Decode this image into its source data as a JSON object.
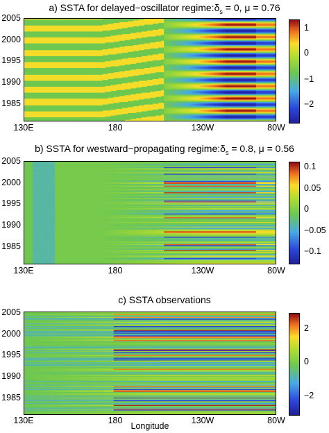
{
  "chart_data": [
    {
      "type": "heatmap",
      "title_prefix": "a) SSTA for delayed−oscillator regime:",
      "title_params": "= 0, μ = 0.76",
      "param_symbol": "δ",
      "param_sub": "s",
      "xlabel": "",
      "x_ticks": [
        "130E",
        "180",
        "130W",
        "80W"
      ],
      "y_ticks": [
        "2005",
        "2000",
        "1995",
        "1990",
        "1985"
      ],
      "ylim": [
        1981,
        2005
      ],
      "colorbar_ticks": [
        "1",
        "0",
        "−1",
        "−2"
      ],
      "colorbar_range": [
        -2.5,
        1.5
      ]
    },
    {
      "type": "heatmap",
      "title_prefix": "b) SSTA for westward−propagating regime:",
      "title_params": "= 0.8, μ = 0.56",
      "param_symbol": "δ",
      "param_sub": "s",
      "xlabel": "",
      "x_ticks": [
        "130E",
        "180",
        "130W",
        "80W"
      ],
      "y_ticks": [
        "2005",
        "2000",
        "1995",
        "1990",
        "1985"
      ],
      "ylim": [
        1981,
        2005
      ],
      "colorbar_ticks": [
        "0.1",
        "0.05",
        "0",
        "−0.05",
        "−0.1"
      ],
      "colorbar_range": [
        -0.12,
        0.11
      ]
    },
    {
      "type": "heatmap",
      "title": "c) SSTA observations",
      "xlabel": "Longitude",
      "x_ticks": [
        "130E",
        "180",
        "130W",
        "80W"
      ],
      "y_ticks": [
        "2005",
        "2000",
        "1995",
        "1990",
        "1985"
      ],
      "ylim": [
        1981,
        2005
      ],
      "colorbar_ticks": [
        "2",
        "0",
        "−2"
      ],
      "colorbar_range": [
        -3,
        3
      ]
    }
  ]
}
